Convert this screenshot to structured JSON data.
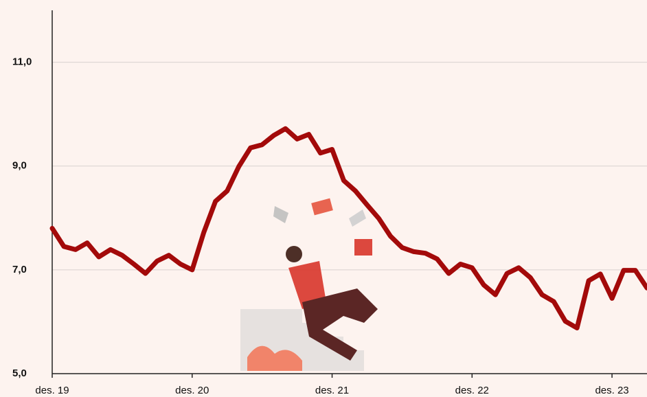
{
  "chart_data": {
    "type": "line",
    "x": [
      "2019-12",
      "2020-01",
      "2020-02",
      "2020-03",
      "2020-04",
      "2020-05",
      "2020-06",
      "2020-07",
      "2020-08",
      "2020-09",
      "2020-10",
      "2020-11",
      "2020-12",
      "2021-01",
      "2021-02",
      "2021-03",
      "2021-04",
      "2021-05",
      "2021-06",
      "2021-07",
      "2021-08",
      "2021-09",
      "2021-10",
      "2021-11",
      "2021-12",
      "2022-01",
      "2022-02",
      "2022-03",
      "2022-04",
      "2022-05",
      "2022-06",
      "2022-07",
      "2022-08",
      "2022-09",
      "2022-10",
      "2022-11",
      "2022-12",
      "2023-01",
      "2023-02",
      "2023-03",
      "2023-04",
      "2023-05",
      "2023-06",
      "2023-07",
      "2023-08",
      "2023-09",
      "2023-10",
      "2023-11",
      "2023-12",
      "2024-01",
      "2024-02",
      "2024-03"
    ],
    "series": [
      {
        "color": "#a30a0a",
        "values": [
          7.8,
          7.45,
          7.39,
          7.52,
          7.25,
          7.39,
          7.28,
          7.11,
          6.93,
          7.17,
          7.28,
          7.11,
          7.0,
          7.72,
          8.32,
          8.52,
          8.99,
          9.35,
          9.41,
          9.59,
          9.72,
          9.52,
          9.61,
          9.25,
          9.32,
          8.72,
          8.52,
          8.25,
          7.99,
          7.65,
          7.43,
          7.35,
          7.32,
          7.21,
          6.93,
          7.11,
          7.04,
          6.71,
          6.52,
          6.93,
          7.04,
          6.85,
          6.52,
          6.39,
          6.01,
          5.88,
          6.79,
          6.92,
          6.45,
          6.99,
          6.99,
          6.65
        ]
      }
    ],
    "xlim": [
      "2019-12",
      "2024-03"
    ],
    "xticks": [
      {
        "value": "2019-12",
        "label": "des. 19"
      },
      {
        "value": "2020-12",
        "label": "des. 20"
      },
      {
        "value": "2021-12",
        "label": "des. 21"
      },
      {
        "value": "2022-12",
        "label": "des. 22"
      },
      {
        "value": "2023-12",
        "label": "des. 23"
      }
    ],
    "ylim": [
      5,
      12
    ],
    "yticks": [
      {
        "value": 5,
        "label": "5,0"
      },
      {
        "value": 7,
        "label": "7,0"
      },
      {
        "value": 9,
        "label": "9,0"
      },
      {
        "value": 11,
        "label": "11,0"
      }
    ],
    "grid": true
  }
}
